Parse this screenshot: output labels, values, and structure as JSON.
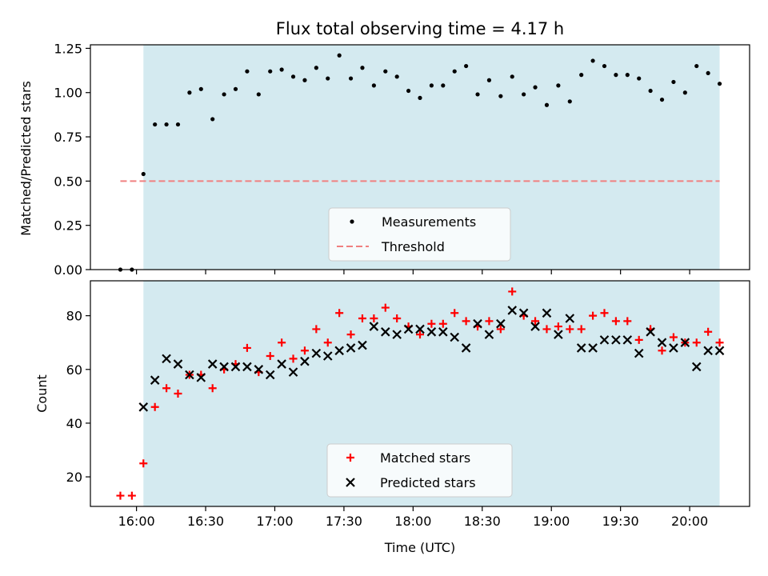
{
  "colors": {
    "shade": "#d4eaf0",
    "measurement": "#000000",
    "threshold": "#f08080",
    "matched": "#ff0000",
    "predicted": "#000000",
    "axis": "#000000"
  },
  "chart_data": [
    {
      "type": "scatter",
      "title": "Flux total observing time = 4.17 h",
      "xlabel": "",
      "ylabel": "Matched/Predicted stars",
      "xlim": [
        "15:40",
        "20:26"
      ],
      "ylim": [
        0,
        1.27
      ],
      "xticks": [
        "16:00",
        "16:30",
        "17:00",
        "17:30",
        "18:00",
        "18:30",
        "19:00",
        "19:30",
        "20:00"
      ],
      "yticks": [
        "0.00",
        "0.25",
        "0.50",
        "0.75",
        "1.00",
        "1.25"
      ],
      "shaded_span": [
        "16:03",
        "20:13"
      ],
      "legend_position": "lower center",
      "series": [
        {
          "name": "Measurements",
          "marker": "dot",
          "points": [
            [
              "15:53",
              0.0
            ],
            [
              "15:58",
              0.0
            ],
            [
              "16:03",
              0.54
            ],
            [
              "16:08",
              0.82
            ],
            [
              "16:13",
              0.82
            ],
            [
              "16:18",
              0.82
            ],
            [
              "16:23",
              1.0
            ],
            [
              "16:28",
              1.02
            ],
            [
              "16:33",
              0.85
            ],
            [
              "16:38",
              0.99
            ],
            [
              "16:43",
              1.02
            ],
            [
              "16:48",
              1.12
            ],
            [
              "16:53",
              0.99
            ],
            [
              "16:58",
              1.12
            ],
            [
              "17:03",
              1.13
            ],
            [
              "17:08",
              1.09
            ],
            [
              "17:13",
              1.07
            ],
            [
              "17:18",
              1.14
            ],
            [
              "17:23",
              1.08
            ],
            [
              "17:28",
              1.21
            ],
            [
              "17:33",
              1.08
            ],
            [
              "17:38",
              1.14
            ],
            [
              "17:43",
              1.04
            ],
            [
              "17:48",
              1.12
            ],
            [
              "17:53",
              1.09
            ],
            [
              "17:58",
              1.01
            ],
            [
              "18:03",
              0.97
            ],
            [
              "18:08",
              1.04
            ],
            [
              "18:13",
              1.04
            ],
            [
              "18:18",
              1.12
            ],
            [
              "18:23",
              1.15
            ],
            [
              "18:28",
              0.99
            ],
            [
              "18:33",
              1.07
            ],
            [
              "18:38",
              0.98
            ],
            [
              "18:43",
              1.09
            ],
            [
              "18:48",
              0.99
            ],
            [
              "18:53",
              1.03
            ],
            [
              "18:58",
              0.93
            ],
            [
              "19:03",
              1.04
            ],
            [
              "19:08",
              0.95
            ],
            [
              "19:13",
              1.1
            ],
            [
              "19:18",
              1.18
            ],
            [
              "19:23",
              1.15
            ],
            [
              "19:28",
              1.1
            ],
            [
              "19:33",
              1.1
            ],
            [
              "19:38",
              1.08
            ],
            [
              "19:43",
              1.01
            ],
            [
              "19:48",
              0.96
            ],
            [
              "19:53",
              1.06
            ],
            [
              "19:58",
              1.0
            ],
            [
              "20:03",
              1.15
            ],
            [
              "20:08",
              1.11
            ],
            [
              "20:13",
              1.05
            ]
          ]
        },
        {
          "name": "Threshold",
          "marker": "dashed-line",
          "points": [
            [
              "15:53",
              0.5
            ],
            [
              "20:13",
              0.5
            ]
          ]
        }
      ]
    },
    {
      "type": "scatter",
      "title": "",
      "xlabel": "Time (UTC)",
      "ylabel": "Count",
      "xlim": [
        "15:40",
        "20:26"
      ],
      "ylim": [
        9,
        93
      ],
      "xticks": [
        "16:00",
        "16:30",
        "17:00",
        "17:30",
        "18:00",
        "18:30",
        "19:00",
        "19:30",
        "20:00"
      ],
      "yticks": [
        "20",
        "40",
        "60",
        "80"
      ],
      "shaded_span": [
        "16:03",
        "20:13"
      ],
      "legend_position": "lower center",
      "series": [
        {
          "name": "Matched stars",
          "marker": "plus",
          "points": [
            [
              "15:53",
              13
            ],
            [
              "15:58",
              13
            ],
            [
              "16:03",
              25
            ],
            [
              "16:08",
              46
            ],
            [
              "16:13",
              53
            ],
            [
              "16:18",
              51
            ],
            [
              "16:23",
              58
            ],
            [
              "16:28",
              58
            ],
            [
              "16:33",
              53
            ],
            [
              "16:38",
              60
            ],
            [
              "16:43",
              62
            ],
            [
              "16:48",
              68
            ],
            [
              "16:53",
              59
            ],
            [
              "16:58",
              65
            ],
            [
              "17:03",
              70
            ],
            [
              "17:08",
              64
            ],
            [
              "17:13",
              67
            ],
            [
              "17:18",
              75
            ],
            [
              "17:23",
              70
            ],
            [
              "17:28",
              81
            ],
            [
              "17:33",
              73
            ],
            [
              "17:38",
              79
            ],
            [
              "17:43",
              79
            ],
            [
              "17:48",
              83
            ],
            [
              "17:53",
              79
            ],
            [
              "17:58",
              76
            ],
            [
              "18:03",
              73
            ],
            [
              "18:08",
              77
            ],
            [
              "18:13",
              77
            ],
            [
              "18:18",
              81
            ],
            [
              "18:23",
              78
            ],
            [
              "18:28",
              76
            ],
            [
              "18:33",
              78
            ],
            [
              "18:38",
              75
            ],
            [
              "18:43",
              89
            ],
            [
              "18:48",
              80
            ],
            [
              "18:53",
              78
            ],
            [
              "18:58",
              75
            ],
            [
              "19:03",
              76
            ],
            [
              "19:08",
              75
            ],
            [
              "19:13",
              75
            ],
            [
              "19:18",
              80
            ],
            [
              "19:23",
              81
            ],
            [
              "19:28",
              78
            ],
            [
              "19:33",
              78
            ],
            [
              "19:38",
              71
            ],
            [
              "19:43",
              75
            ],
            [
              "19:48",
              67
            ],
            [
              "19:53",
              72
            ],
            [
              "19:58",
              70
            ],
            [
              "20:03",
              70
            ],
            [
              "20:08",
              74
            ],
            [
              "20:13",
              70
            ]
          ]
        },
        {
          "name": "Predicted stars",
          "marker": "x",
          "points": [
            [
              "16:03",
              46
            ],
            [
              "16:08",
              56
            ],
            [
              "16:13",
              64
            ],
            [
              "16:18",
              62
            ],
            [
              "16:23",
              58
            ],
            [
              "16:28",
              57
            ],
            [
              "16:33",
              62
            ],
            [
              "16:38",
              61
            ],
            [
              "16:43",
              61
            ],
            [
              "16:48",
              61
            ],
            [
              "16:53",
              60
            ],
            [
              "16:58",
              58
            ],
            [
              "17:03",
              62
            ],
            [
              "17:08",
              59
            ],
            [
              "17:13",
              63
            ],
            [
              "17:18",
              66
            ],
            [
              "17:23",
              65
            ],
            [
              "17:28",
              67
            ],
            [
              "17:33",
              68
            ],
            [
              "17:38",
              69
            ],
            [
              "17:43",
              76
            ],
            [
              "17:48",
              74
            ],
            [
              "17:53",
              73
            ],
            [
              "17:58",
              75
            ],
            [
              "18:03",
              75
            ],
            [
              "18:08",
              74
            ],
            [
              "18:13",
              74
            ],
            [
              "18:18",
              72
            ],
            [
              "18:23",
              68
            ],
            [
              "18:28",
              77
            ],
            [
              "18:33",
              73
            ],
            [
              "18:38",
              77
            ],
            [
              "18:43",
              82
            ],
            [
              "18:48",
              81
            ],
            [
              "18:53",
              76
            ],
            [
              "18:58",
              81
            ],
            [
              "19:03",
              73
            ],
            [
              "19:08",
              79
            ],
            [
              "19:13",
              68
            ],
            [
              "19:18",
              68
            ],
            [
              "19:23",
              71
            ],
            [
              "19:28",
              71
            ],
            [
              "19:33",
              71
            ],
            [
              "19:38",
              66
            ],
            [
              "19:43",
              74
            ],
            [
              "19:48",
              70
            ],
            [
              "19:53",
              68
            ],
            [
              "19:58",
              70
            ],
            [
              "20:03",
              61
            ],
            [
              "20:08",
              67
            ],
            [
              "20:13",
              67
            ]
          ]
        }
      ]
    }
  ]
}
